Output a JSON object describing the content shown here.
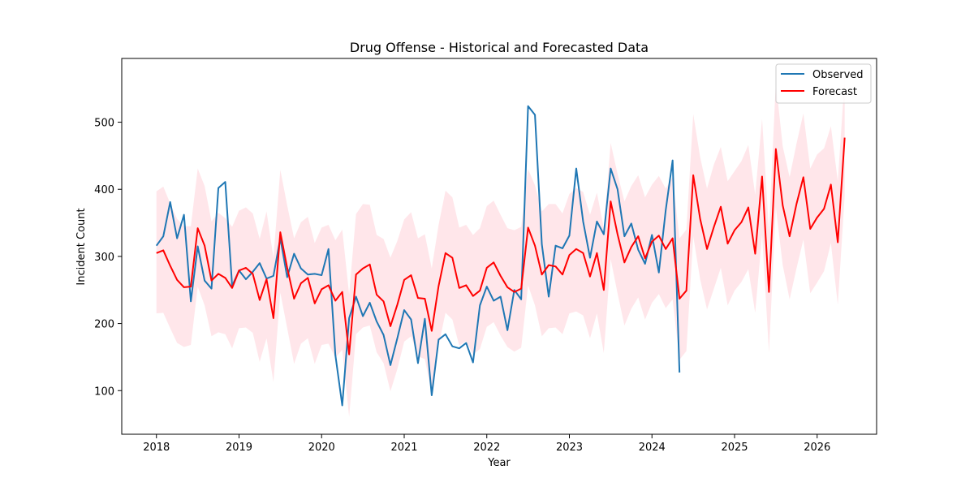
{
  "chart_data": {
    "type": "line",
    "title": "Drug Offense - Historical and Forecasted Data",
    "xlabel": "Year",
    "ylabel": "Incident Count",
    "xlim": [
      2017.58,
      2026.72
    ],
    "ylim": [
      35,
      595
    ],
    "x_ticks": [
      2018,
      2019,
      2020,
      2021,
      2022,
      2023,
      2024,
      2025,
      2026
    ],
    "y_ticks": [
      100,
      200,
      300,
      400,
      500
    ],
    "legend_position": "top-right",
    "grid": false,
    "colors": {
      "observed": "#1f77b4",
      "forecast": "#ff0000",
      "band": "#ffc0cb"
    },
    "series": [
      {
        "name": "Observed",
        "start_year": 2018,
        "step_months": 1,
        "values": [
          316,
          330,
          381,
          327,
          362,
          233,
          315,
          264,
          252,
          402,
          411,
          256,
          279,
          266,
          277,
          290,
          267,
          271,
          327,
          269,
          304,
          282,
          273,
          274,
          272,
          311,
          153,
          78,
          208,
          240,
          211,
          231,
          203,
          183,
          138,
          178,
          220,
          206,
          141,
          207,
          93,
          176,
          184,
          166,
          163,
          171,
          142,
          227,
          255,
          234,
          240,
          190,
          250,
          236,
          524,
          511,
          318,
          240,
          316,
          312,
          331,
          431,
          352,
          298,
          352,
          333,
          431,
          400,
          330,
          349,
          310,
          289,
          332,
          276,
          369,
          443,
          127
        ]
      },
      {
        "name": "Forecast",
        "start_year": 2018,
        "step_months": 1,
        "values": [
          305,
          309,
          286,
          265,
          254,
          255,
          342,
          316,
          264,
          274,
          268,
          253,
          279,
          283,
          274,
          235,
          266,
          208,
          336,
          283,
          237,
          260,
          268,
          230,
          251,
          257,
          234,
          247,
          154,
          273,
          282,
          288,
          243,
          233,
          196,
          228,
          265,
          272,
          238,
          237,
          189,
          256,
          305,
          298,
          253,
          257,
          241,
          249,
          283,
          291,
          271,
          254,
          247,
          252,
          343,
          316,
          273,
          287,
          285,
          273,
          302,
          311,
          305,
          270,
          305,
          250,
          382,
          333,
          291,
          314,
          330,
          297,
          322,
          331,
          311,
          327,
          237,
          249,
          421,
          356,
          311,
          344,
          374,
          319,
          339,
          351,
          373,
          304,
          419,
          247,
          460,
          376,
          330,
          378,
          418,
          341,
          358,
          371,
          407,
          321,
          477
        ]
      }
    ],
    "confidence_band": {
      "start_year": 2018,
      "step_months": 1,
      "upper": [
        397,
        404,
        379,
        356,
        345,
        345,
        431,
        405,
        352,
        365,
        357,
        344,
        368,
        373,
        364,
        326,
        367,
        298,
        429,
        376,
        327,
        351,
        359,
        320,
        343,
        347,
        324,
        340,
        243,
        363,
        378,
        377,
        332,
        326,
        298,
        323,
        355,
        366,
        327,
        333,
        282,
        347,
        398,
        388,
        343,
        347,
        332,
        342,
        375,
        383,
        362,
        342,
        339,
        344,
        430,
        406,
        367,
        378,
        378,
        364,
        393,
        402,
        396,
        362,
        395,
        342,
        469,
        423,
        382,
        405,
        421,
        388,
        407,
        420,
        401,
        418,
        327,
        340,
        512,
        448,
        401,
        437,
        463,
        412,
        427,
        442,
        466,
        392,
        505,
        338,
        560,
        464,
        418,
        468,
        513,
        431,
        452,
        461,
        494,
        412,
        565
      ],
      "lower": [
        215,
        216,
        193,
        171,
        165,
        168,
        255,
        227,
        181,
        187,
        184,
        163,
        193,
        194,
        186,
        143,
        178,
        113,
        246,
        193,
        140,
        170,
        178,
        140,
        168,
        170,
        149,
        161,
        61,
        184,
        194,
        197,
        157,
        141,
        99,
        132,
        173,
        181,
        151,
        147,
        97,
        167,
        216,
        206,
        167,
        174,
        154,
        162,
        195,
        202,
        182,
        165,
        158,
        164,
        257,
        227,
        181,
        193,
        194,
        184,
        215,
        218,
        212,
        178,
        215,
        156,
        296,
        245,
        197,
        222,
        239,
        206,
        231,
        244,
        223,
        236,
        146,
        159,
        330,
        266,
        221,
        252,
        283,
        227,
        249,
        262,
        281,
        216,
        332,
        157,
        373,
        287,
        236,
        282,
        325,
        245,
        261,
        278,
        320,
        228,
        390
      ]
    }
  }
}
